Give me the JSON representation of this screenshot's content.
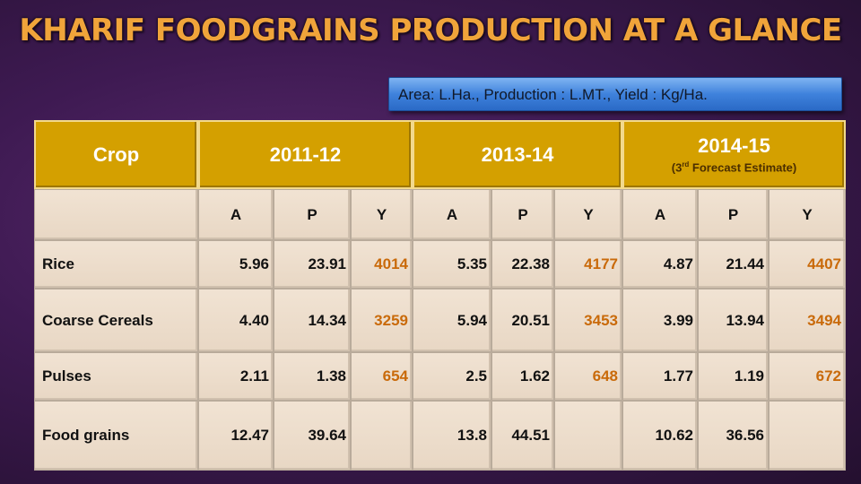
{
  "title": "KHARIF FOODGRAINS PRODUCTION AT A GLANCE",
  "units_note": "Area: L.Ha., Production : L.MT., Yield : Kg/Ha.",
  "table": {
    "crop_header": "Crop",
    "periods": [
      {
        "label": "2011-12",
        "note_prefix": "",
        "note_sup": "",
        "note_suffix": ""
      },
      {
        "label": "2013-14",
        "note_prefix": "",
        "note_sup": "",
        "note_suffix": ""
      },
      {
        "label": "2014-15",
        "note_prefix": "(3",
        "note_sup": "rd",
        "note_suffix": " Forecast Estimate)"
      }
    ],
    "sub_headers": [
      "A",
      "P",
      "Y",
      "A",
      "P",
      "Y",
      "A",
      "P",
      "Y"
    ],
    "rows": [
      {
        "crop": "Rice",
        "values": [
          "5.96",
          "23.91",
          "4014",
          "5.35",
          "22.38",
          "4177",
          "4.87",
          "21.44",
          "4407"
        ]
      },
      {
        "crop": "Coarse Cereals",
        "values": [
          "4.40",
          "14.34",
          "3259",
          "5.94",
          "20.51",
          "3453",
          "3.99",
          "13.94",
          "3494"
        ]
      },
      {
        "crop": "Pulses",
        "values": [
          "2.11",
          "1.38",
          "654",
          "2.5",
          "1.62",
          "648",
          "1.77",
          "1.19",
          "672"
        ]
      },
      {
        "crop": "Food grains",
        "values": [
          "12.47",
          "39.64",
          "",
          "13.8",
          "44.51",
          "",
          "10.62",
          "36.56",
          ""
        ]
      }
    ]
  },
  "colors": {
    "title": "#f0a43a",
    "header_fill": "#d4a000",
    "cell_fill": "#f1e3d3",
    "yield_text": "#c96a0a",
    "note_box": "#3f82dc"
  }
}
